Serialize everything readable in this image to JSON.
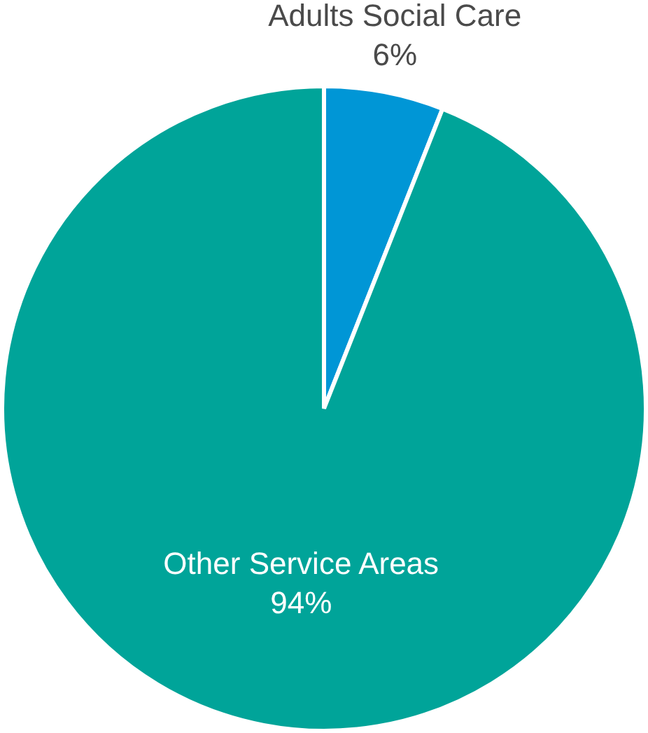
{
  "chart_data": {
    "type": "pie",
    "categories": [
      "Adults Social Care",
      "Other Service Areas"
    ],
    "values": [
      6,
      94
    ],
    "colors": [
      "#0096d6",
      "#00a499"
    ],
    "value_labels": [
      "6%",
      "94%"
    ],
    "legend": false
  }
}
